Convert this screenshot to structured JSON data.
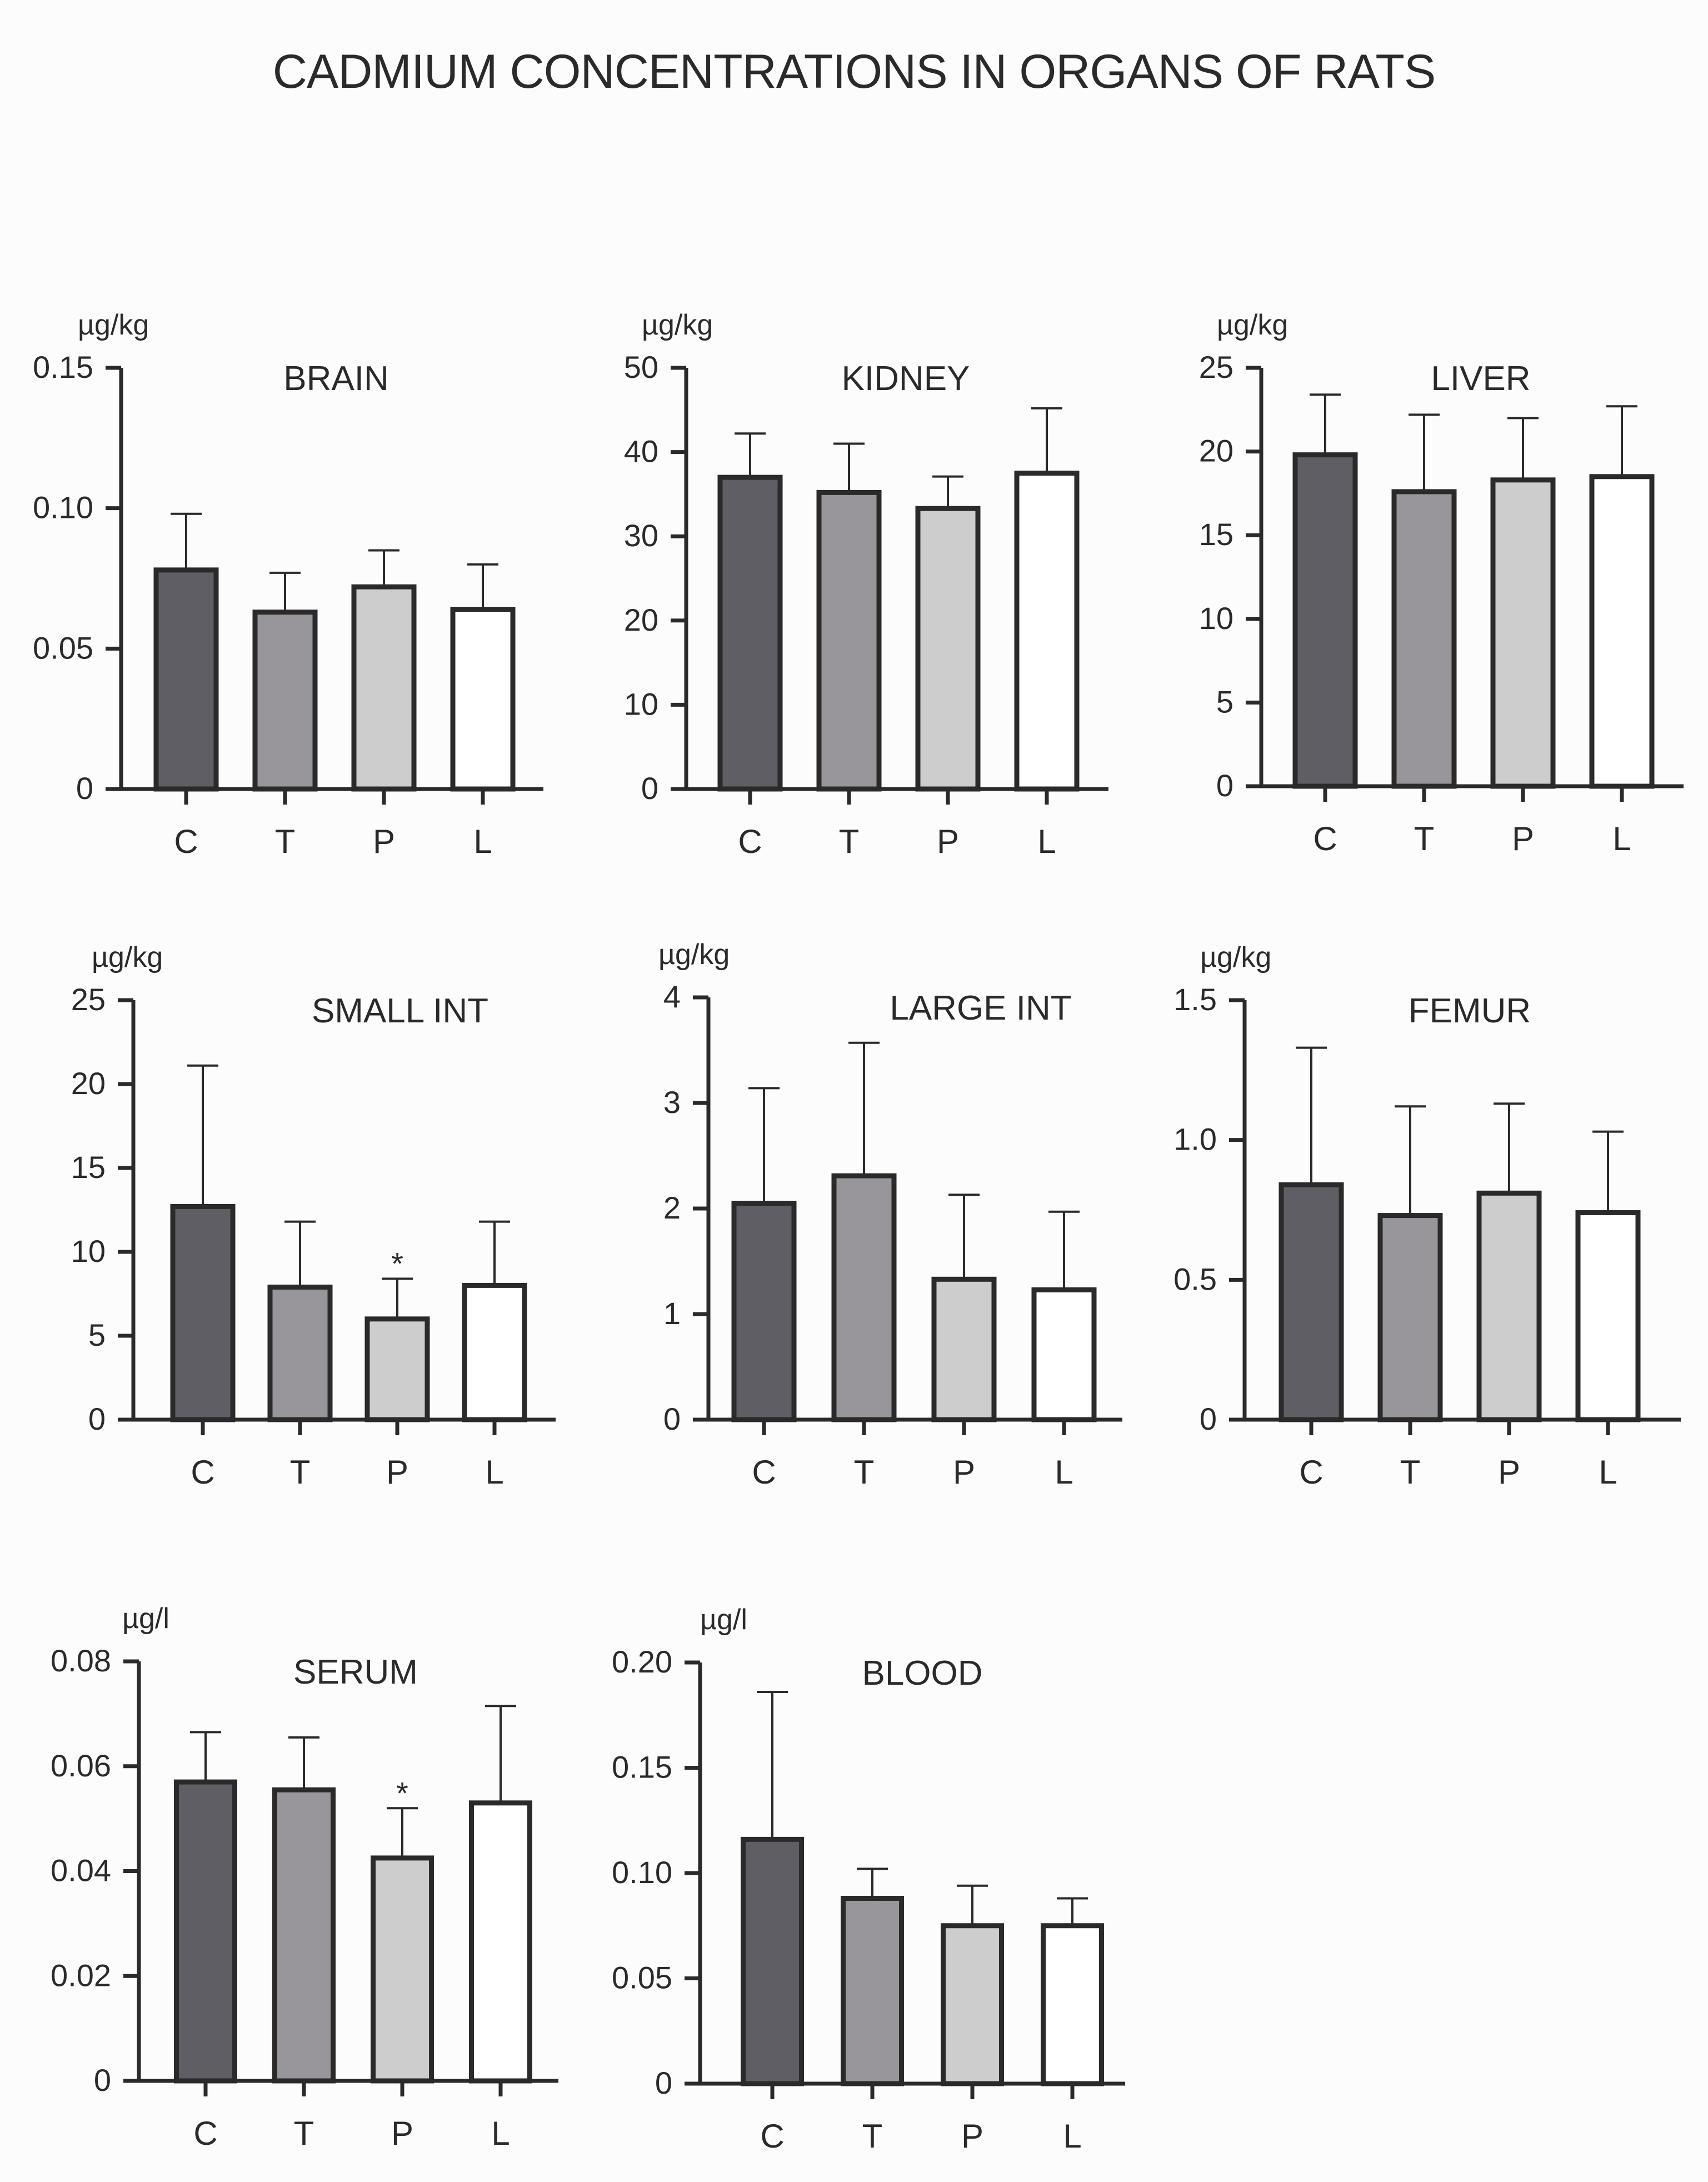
{
  "title": "CADMIUM CONCENTRATIONS IN ORGANS OF RATS",
  "colors": {
    "C": "#5f5e64",
    "T": "#98969a",
    "P": "#cdcdcd",
    "L": "#ffffff",
    "outline": "#2a2a2a",
    "background": "#fcfcfc"
  },
  "chart_data": [
    {
      "type": "bar",
      "title": "BRAIN",
      "ylabel": "µg/kg",
      "categories": [
        "C",
        "T",
        "P",
        "L"
      ],
      "values": [
        0.078,
        0.063,
        0.072,
        0.064
      ],
      "errors": [
        0.02,
        0.014,
        0.013,
        0.016
      ],
      "ylim": [
        0,
        0.15
      ],
      "yticks": [
        0,
        0.05,
        0.1,
        0.15
      ],
      "ytick_labels": [
        "0",
        "0.05",
        "0.10",
        "0.15"
      ],
      "significant": [
        false,
        false,
        false,
        false
      ]
    },
    {
      "type": "bar",
      "title": "KIDNEY",
      "ylabel": "µg/kg",
      "categories": [
        "C",
        "T",
        "P",
        "L"
      ],
      "values": [
        37.0,
        35.2,
        33.3,
        37.5
      ],
      "errors": [
        5.2,
        5.8,
        3.8,
        7.7
      ],
      "ylim": [
        0,
        50
      ],
      "yticks": [
        0,
        10,
        20,
        30,
        40,
        50
      ],
      "ytick_labels": [
        "0",
        "10",
        "20",
        "30",
        "40",
        "50"
      ],
      "significant": [
        false,
        false,
        false,
        false
      ]
    },
    {
      "type": "bar",
      "title": "LIVER",
      "ylabel": "µg/kg",
      "categories": [
        "C",
        "T",
        "P",
        "L"
      ],
      "values": [
        19.8,
        17.6,
        18.3,
        18.5
      ],
      "errors": [
        3.6,
        4.6,
        3.7,
        4.2
      ],
      "ylim": [
        0,
        25
      ],
      "yticks": [
        0,
        5,
        10,
        15,
        20,
        25
      ],
      "ytick_labels": [
        "0",
        "5",
        "10",
        "15",
        "20",
        "25"
      ],
      "significant": [
        false,
        false,
        false,
        false
      ]
    },
    {
      "type": "bar",
      "title": "SMALL INT",
      "ylabel": "µg/kg",
      "categories": [
        "C",
        "T",
        "P",
        "L"
      ],
      "values": [
        12.7,
        7.9,
        6.0,
        8.0
      ],
      "errors": [
        8.4,
        3.9,
        2.4,
        3.8
      ],
      "ylim": [
        0,
        25
      ],
      "yticks": [
        0,
        5,
        10,
        15,
        20,
        25
      ],
      "ytick_labels": [
        "0",
        "5",
        "10",
        "15",
        "20",
        "25"
      ],
      "significant": [
        false,
        false,
        true,
        false
      ]
    },
    {
      "type": "bar",
      "title": "LARGE INT",
      "ylabel": "µg/kg",
      "categories": [
        "C",
        "T",
        "P",
        "L"
      ],
      "values": [
        2.05,
        2.31,
        1.33,
        1.23
      ],
      "errors": [
        1.09,
        1.26,
        0.8,
        0.74
      ],
      "ylim": [
        0,
        4
      ],
      "yticks": [
        0,
        1,
        2,
        3,
        4
      ],
      "ytick_labels": [
        "0",
        "1",
        "2",
        "3",
        "4"
      ],
      "significant": [
        false,
        false,
        false,
        false
      ]
    },
    {
      "type": "bar",
      "title": "FEMUR",
      "ylabel": "µg/kg",
      "categories": [
        "C",
        "T",
        "P",
        "L"
      ],
      "values": [
        0.84,
        0.73,
        0.81,
        0.74
      ],
      "errors": [
        0.49,
        0.39,
        0.32,
        0.29
      ],
      "ylim": [
        0,
        1.5
      ],
      "yticks": [
        0,
        0.5,
        1.0,
        1.5
      ],
      "ytick_labels": [
        "0",
        "0.5",
        "1.0",
        "1.5"
      ],
      "significant": [
        false,
        false,
        false,
        false
      ]
    },
    {
      "type": "bar",
      "title": "SERUM",
      "ylabel": "µg/l",
      "categories": [
        "C",
        "T",
        "P",
        "L"
      ],
      "values": [
        0.057,
        0.0555,
        0.0425,
        0.053
      ],
      "errors": [
        0.0095,
        0.01,
        0.0095,
        0.0185
      ],
      "ylim": [
        0,
        0.08
      ],
      "yticks": [
        0,
        0.02,
        0.04,
        0.06,
        0.08
      ],
      "ytick_labels": [
        "0",
        "0.02",
        "0.04",
        "0.06",
        "0.08"
      ],
      "significant": [
        false,
        false,
        true,
        false
      ]
    },
    {
      "type": "bar",
      "title": "BLOOD",
      "ylabel": "µg/l",
      "categories": [
        "C",
        "T",
        "P",
        "L"
      ],
      "values": [
        0.116,
        0.088,
        0.075,
        0.075
      ],
      "errors": [
        0.07,
        0.014,
        0.019,
        0.013
      ],
      "ylim": [
        0,
        0.2
      ],
      "yticks": [
        0,
        0.05,
        0.1,
        0.15,
        0.2
      ],
      "ytick_labels": [
        "0",
        "0.05",
        "0.10",
        "0.15",
        "0.20"
      ],
      "significant": [
        false,
        false,
        false,
        false
      ]
    }
  ]
}
